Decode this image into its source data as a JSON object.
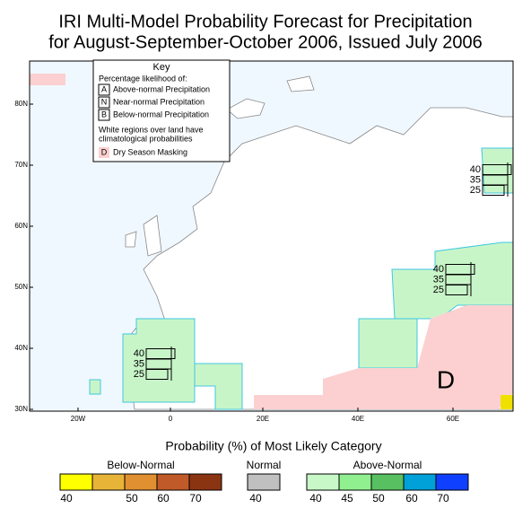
{
  "header": {
    "title_line1": "IRI Multi-Model Probability Forecast for Precipitation",
    "title_line2": "for August-September-October 2006, Issued July 2006"
  },
  "key": {
    "title": "Key",
    "subtitle": "Percentage likelihood of:",
    "items": [
      {
        "letter": "A",
        "label": "Above-normal Precipitation"
      },
      {
        "letter": "N",
        "label": "Near-normal Precipitation"
      },
      {
        "letter": "B",
        "label": "Below-normal Precipitation"
      }
    ],
    "note": [
      "White regions over land have",
      "climatological probabilities"
    ],
    "mask": {
      "letter": "D",
      "label": "Dry Season Masking"
    }
  },
  "map": {
    "lat_labels": [
      "80N",
      "70N",
      "60N",
      "50N",
      "40N",
      "30N"
    ],
    "lon_labels": [
      "20W",
      "0",
      "20E",
      "40E",
      "60E"
    ],
    "glyphs": [
      {
        "labels": [
          "40",
          "35",
          "25"
        ]
      },
      {
        "labels": [
          "40",
          "35",
          "25"
        ]
      },
      {
        "labels": [
          "40",
          "35",
          "25"
        ]
      }
    ],
    "mask_letter": "D"
  },
  "legend": {
    "title": "Probability (%) of Most Likely Category",
    "groups": [
      {
        "name": "Below-Normal",
        "ticks": [
          "40",
          "50",
          "60",
          "70"
        ]
      },
      {
        "name": "Normal",
        "ticks": [
          "40"
        ]
      },
      {
        "name": "Above-Normal",
        "ticks": [
          "40",
          "45",
          "50",
          "60",
          "70"
        ]
      }
    ]
  }
}
